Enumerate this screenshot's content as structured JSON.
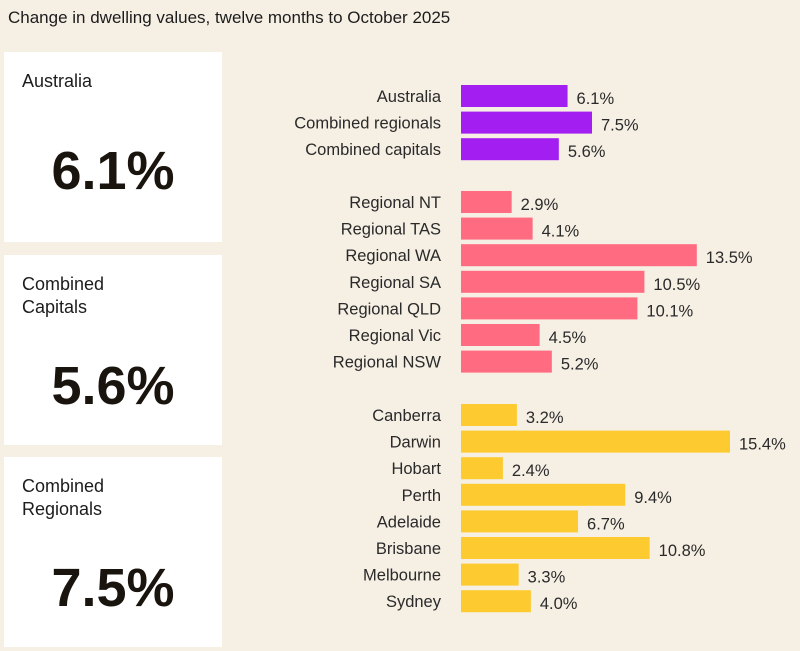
{
  "chart_data": {
    "type": "bar",
    "orientation": "horizontal",
    "title": "Change in dwelling values, twelve months to October 2025",
    "unit": "%",
    "groups": [
      {
        "color": "#a31ef0",
        "categories": [
          "Australia",
          "Combined regionals",
          "Combined capitals"
        ],
        "values": [
          6.1,
          7.5,
          5.6
        ]
      },
      {
        "color": "#ff6b80",
        "categories": [
          "Regional NT",
          "Regional TAS",
          "Regional WA",
          "Regional SA",
          "Regional QLD",
          "Regional Vic",
          "Regional NSW"
        ],
        "values": [
          2.9,
          4.1,
          13.5,
          10.5,
          10.1,
          4.5,
          5.2
        ]
      },
      {
        "color": "#fdca2f",
        "categories": [
          "Canberra",
          "Darwin",
          "Hobart",
          "Perth",
          "Adelaide",
          "Brisbane",
          "Melbourne",
          "Sydney"
        ],
        "values": [
          3.2,
          15.4,
          2.4,
          9.4,
          6.7,
          10.8,
          3.3,
          4.0
        ]
      }
    ],
    "xlim": [
      0,
      15.4
    ],
    "grid": false
  },
  "cards": [
    {
      "label": "Australia",
      "value": "6.1%"
    },
    {
      "label": "Combined\nCapitals",
      "value": "5.6%"
    },
    {
      "label": "Combined\nRegionals",
      "value": "7.5%"
    }
  ]
}
